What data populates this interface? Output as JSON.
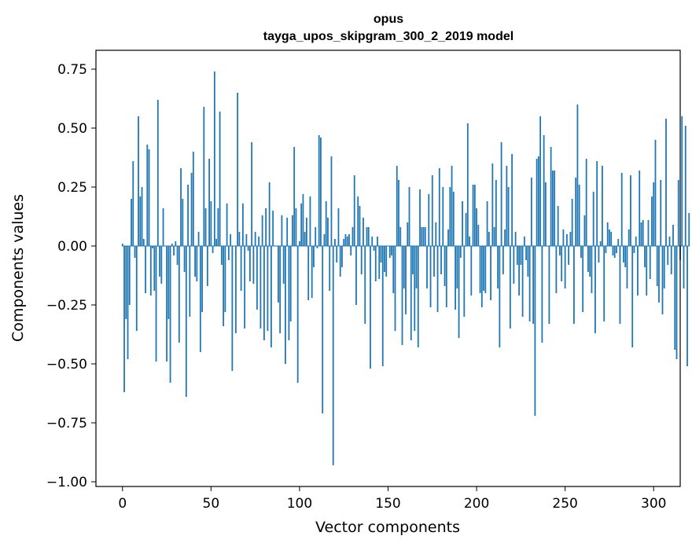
{
  "chart_data": {
    "type": "bar",
    "title": "opus",
    "subtitle": "tayga_upos_skipgram_300_2_2019 model",
    "xlabel": "Vector components",
    "ylabel": "Components values",
    "xlim": [
      -15,
      315
    ],
    "ylim": [
      -1.02,
      0.83
    ],
    "xticks": [
      0,
      50,
      100,
      150,
      200,
      250,
      300
    ],
    "yticks": [
      -1.0,
      -0.75,
      -0.5,
      -0.25,
      0.0,
      0.25,
      0.5,
      0.75
    ],
    "ytick_labels": [
      "−1.00",
      "−0.75",
      "−0.50",
      "−0.25",
      "0.00",
      "0.25",
      "0.50",
      "0.75"
    ],
    "bar_color": "#1f77b4",
    "grid": false,
    "values": [
      0.01,
      -0.62,
      -0.31,
      -0.48,
      -0.25,
      0.2,
      0.36,
      -0.05,
      -0.36,
      0.55,
      0.21,
      0.25,
      0.03,
      -0.2,
      0.43,
      0.41,
      -0.21,
      -0.01,
      -0.19,
      -0.49,
      0.62,
      -0.13,
      -0.16,
      0.16,
      0.0,
      -0.49,
      -0.31,
      -0.58,
      0.01,
      -0.04,
      0.02,
      -0.08,
      -0.41,
      0.33,
      0.2,
      -0.11,
      -0.64,
      0.26,
      -0.3,
      0.31,
      0.4,
      -0.13,
      -0.15,
      0.06,
      -0.45,
      -0.28,
      0.59,
      0.16,
      -0.17,
      0.37,
      0.19,
      -0.03,
      0.74,
      0.03,
      0.16,
      0.57,
      -0.08,
      -0.34,
      -0.28,
      0.18,
      -0.06,
      0.05,
      -0.53,
      0.0,
      -0.37,
      0.65,
      0.06,
      -0.19,
      0.18,
      -0.35,
      0.05,
      -0.02,
      -0.15,
      0.44,
      -0.16,
      0.06,
      -0.27,
      0.04,
      -0.35,
      0.13,
      -0.4,
      0.16,
      -0.36,
      0.27,
      -0.43,
      0.15,
      0.0,
      0.0,
      -0.24,
      -0.37,
      0.13,
      -0.16,
      -0.5,
      0.12,
      -0.4,
      -0.32,
      0.13,
      0.42,
      0.16,
      -0.58,
      0.02,
      0.18,
      0.22,
      0.06,
      0.12,
      -0.23,
      0.21,
      -0.22,
      -0.09,
      0.08,
      -0.01,
      0.47,
      0.46,
      -0.71,
      0.05,
      0.19,
      0.12,
      -0.19,
      0.38,
      -0.93,
      0.03,
      -0.07,
      0.16,
      -0.13,
      -0.09,
      0.03,
      0.05,
      0.04,
      0.05,
      -0.04,
      0.08,
      0.3,
      -0.25,
      0.21,
      0.17,
      -0.12,
      0.12,
      -0.33,
      0.08,
      0.08,
      -0.52,
      0.04,
      -0.02,
      -0.15,
      0.04,
      -0.14,
      -0.07,
      -0.51,
      -0.11,
      -0.13,
      0.0,
      -0.05,
      -0.04,
      -0.2,
      -0.36,
      0.34,
      0.28,
      0.08,
      -0.42,
      -0.18,
      -0.29,
      0.1,
      0.25,
      -0.4,
      -0.12,
      -0.36,
      -0.18,
      -0.43,
      0.24,
      0.08,
      0.08,
      0.08,
      -0.18,
      0.22,
      -0.26,
      0.3,
      -0.13,
      0.1,
      -0.28,
      0.33,
      -0.12,
      0.25,
      -0.17,
      -0.26,
      0.07,
      0.25,
      0.34,
      0.23,
      -0.27,
      -0.18,
      -0.39,
      -0.05,
      0.19,
      -0.3,
      0.14,
      0.52,
      0.04,
      -0.21,
      0.26,
      0.26,
      0.16,
      0.09,
      -0.2,
      -0.26,
      -0.19,
      -0.2,
      0.19,
      0.06,
      -0.23,
      0.35,
      0.08,
      0.28,
      -0.18,
      -0.43,
      0.44,
      -0.12,
      0.07,
      0.34,
      0.25,
      -0.35,
      0.39,
      -0.16,
      0.06,
      -0.08,
      -0.21,
      -0.08,
      -0.3,
      0.04,
      -0.06,
      -0.13,
      -0.32,
      0.29,
      -0.33,
      -0.72,
      0.37,
      0.38,
      0.55,
      -0.41,
      0.47,
      0.27,
      0.0,
      -0.33,
      0.42,
      0.32,
      0.32,
      -0.2,
      0.17,
      -0.04,
      -0.15,
      0.07,
      -0.18,
      0.05,
      -0.08,
      0.06,
      0.2,
      -0.33,
      0.29,
      0.6,
      0.26,
      -0.05,
      -0.28,
      0.13,
      0.37,
      -0.11,
      -0.13,
      -0.2,
      0.23,
      -0.37,
      0.36,
      -0.07,
      0.02,
      0.34,
      -0.32,
      -0.03,
      0.1,
      0.07,
      0.06,
      -0.04,
      -0.05,
      -0.03,
      0.03,
      -0.33,
      0.31,
      -0.07,
      -0.09,
      -0.18,
      0.07,
      0.3,
      -0.43,
      -0.03,
      0.04,
      -0.21,
      0.32,
      0.1,
      0.11,
      -0.09,
      -0.21,
      0.11,
      -0.14,
      0.21,
      0.27,
      0.45,
      -0.17,
      -0.24,
      0.28,
      -0.29,
      -0.18,
      0.54,
      -0.08,
      0.04,
      -0.12,
      0.09,
      -0.44,
      -0.48,
      0.28,
      -0.06,
      0.55,
      -0.18,
      0.51,
      -0.51,
      0.14
    ]
  }
}
